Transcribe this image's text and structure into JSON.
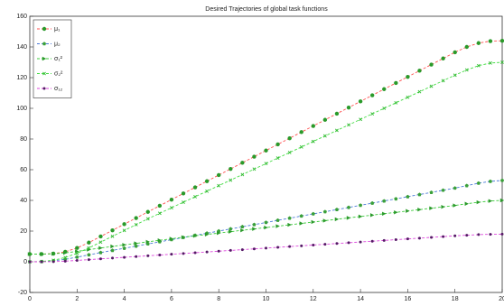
{
  "chart_data": {
    "type": "line",
    "title": "Desired Trajectories of global task functions",
    "x": [
      0,
      0.5,
      1,
      1.5,
      2,
      2.5,
      3,
      3.5,
      4,
      4.5,
      5,
      5.5,
      6,
      6.5,
      7,
      7.5,
      8,
      8.5,
      9,
      9.5,
      10,
      10.5,
      11,
      11.5,
      12,
      12.5,
      13,
      13.5,
      14,
      14.5,
      15,
      15.5,
      16,
      16.5,
      17,
      17.5,
      18,
      18.5,
      19,
      19.5,
      20
    ],
    "series": [
      {
        "name": "μ₁",
        "color": "#ff5050",
        "marker": "circle",
        "marker_color": "#2a9a2a",
        "values": [
          5,
          5,
          5.3,
          6.5,
          9,
          12.5,
          16.5,
          20.5,
          24.5,
          28.5,
          32.5,
          36.5,
          40.5,
          44.5,
          48.5,
          52.5,
          56.5,
          60.5,
          64.5,
          68.5,
          72.5,
          76.5,
          80.5,
          84.5,
          88.5,
          92.5,
          96.5,
          100.5,
          104.5,
          108.5,
          112.5,
          116.5,
          120.5,
          124.5,
          128.5,
          132.5,
          136.5,
          140,
          142.5,
          143.8,
          144
        ]
      },
      {
        "name": "μ₂",
        "color": "#4a7ad8",
        "marker": "pentagon",
        "marker_color": "#3aa03a",
        "values": [
          0,
          0.1,
          0.6,
          1.6,
          3,
          4.5,
          6,
          7.4,
          8.8,
          10.2,
          11.6,
          13,
          14.4,
          15.8,
          17.2,
          18.6,
          20,
          21.4,
          22.8,
          24.2,
          25.6,
          27,
          28.4,
          29.8,
          31.2,
          32.6,
          34,
          35.4,
          36.8,
          38.2,
          39.6,
          41,
          42.4,
          43.8,
          45.2,
          46.6,
          48,
          49.6,
          51.2,
          52.4,
          53
        ]
      },
      {
        "name": "σ₁²",
        "color": "#3ccc3c",
        "marker": "triangle",
        "marker_color": "#2a9a2a",
        "values": [
          5,
          5,
          5.2,
          5.8,
          6.8,
          7.9,
          9,
          10,
          11,
          12,
          13,
          14,
          15,
          16,
          16.9,
          17.8,
          18.7,
          19.6,
          20.5,
          21.4,
          22.3,
          23.2,
          24.1,
          25,
          25.9,
          26.8,
          27.7,
          28.6,
          29.5,
          30.4,
          31.3,
          32.2,
          33.1,
          34,
          34.9,
          35.8,
          36.7,
          37.8,
          38.8,
          39.6,
          40
        ]
      },
      {
        "name": "σ₂²",
        "color": "#44dd44",
        "marker": "x",
        "marker_color": "#33bb33",
        "values": [
          0,
          0.2,
          1,
          2.8,
          5.5,
          9,
          12.8,
          16.6,
          20.4,
          24.2,
          28,
          31.6,
          35.2,
          38.8,
          42.4,
          46,
          49.6,
          53.2,
          56.8,
          60.4,
          64,
          67.6,
          71.2,
          74.8,
          78.4,
          82,
          85.6,
          89.2,
          92.8,
          96.4,
          100,
          103.6,
          107.2,
          110.8,
          114.4,
          118,
          121.6,
          125,
          127.8,
          129.5,
          130
        ]
      },
      {
        "name": "σ₁₂",
        "color": "#dd44dd",
        "marker": "dot",
        "marker_color": "#551a66",
        "values": [
          0,
          0,
          0.1,
          0.4,
          0.9,
          1.4,
          1.9,
          2.4,
          2.9,
          3.4,
          3.9,
          4.4,
          4.9,
          5.4,
          5.9,
          6.4,
          6.9,
          7.4,
          7.9,
          8.4,
          8.9,
          9.4,
          9.9,
          10.4,
          10.9,
          11.4,
          11.9,
          12.4,
          12.9,
          13.4,
          13.9,
          14.4,
          14.9,
          15.4,
          15.9,
          16.4,
          16.9,
          17.3,
          17.7,
          17.9,
          18
        ]
      }
    ],
    "xlim": [
      0,
      20
    ],
    "xticks": [
      0,
      2,
      4,
      6,
      8,
      10,
      12,
      14,
      16,
      18,
      20
    ],
    "ylim": [
      -20,
      160
    ],
    "yticks": [
      -20,
      0,
      20,
      40,
      60,
      80,
      100,
      120,
      140,
      160
    ],
    "legend": "upper left"
  }
}
